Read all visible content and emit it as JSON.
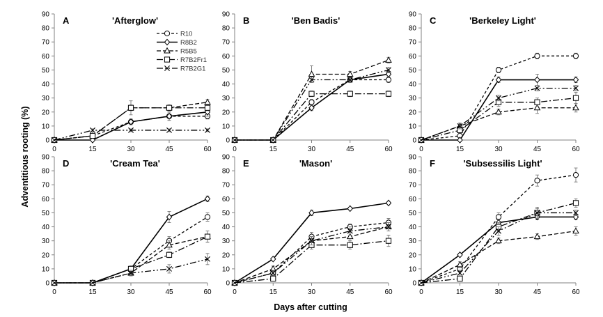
{
  "figure": {
    "xlabel": "Days after cutting",
    "ylabel": "Adventitious rooting (%)"
  },
  "chart_data": [
    {
      "type": "line",
      "letter": "A",
      "title": "'Afterglow'",
      "x": [
        0,
        15,
        30,
        45,
        60
      ],
      "xticks": [
        0,
        15,
        30,
        45,
        60
      ],
      "ylim": [
        0,
        90
      ],
      "yticks": [
        0,
        10,
        20,
        30,
        40,
        50,
        60,
        70,
        80,
        90
      ],
      "grid": false,
      "legend": "top-right",
      "series": [
        {
          "name": "R10",
          "values": [
            0,
            3,
            13,
            17,
            17
          ],
          "err": [
            0,
            1,
            2,
            3,
            2
          ]
        },
        {
          "name": "R8B2",
          "values": [
            0,
            0,
            13,
            17,
            20
          ],
          "err": [
            0,
            0,
            2,
            3,
            3
          ]
        },
        {
          "name": "R5B5",
          "values": [
            0,
            3,
            23,
            23,
            27
          ],
          "err": [
            0,
            1,
            2,
            2,
            2
          ]
        },
        {
          "name": "R7B2Fr1",
          "values": [
            0,
            3,
            23,
            23,
            23
          ],
          "err": [
            0,
            1,
            5,
            2,
            2
          ]
        },
        {
          "name": "R7B2G1",
          "values": [
            0,
            7,
            7,
            7,
            7
          ],
          "err": [
            0,
            1,
            1,
            1,
            1
          ]
        }
      ]
    },
    {
      "type": "line",
      "letter": "B",
      "title": "'Ben Badis'",
      "x": [
        0,
        15,
        30,
        45,
        60
      ],
      "xticks": [
        0,
        15,
        30,
        45,
        60
      ],
      "ylim": [
        0,
        90
      ],
      "yticks": [
        0,
        10,
        20,
        30,
        40,
        50,
        60,
        70,
        80,
        90
      ],
      "grid": false,
      "series": [
        {
          "name": "R10",
          "values": [
            0,
            0,
            27,
            43,
            43
          ],
          "err": [
            0,
            0,
            2,
            2,
            2
          ]
        },
        {
          "name": "R8B2",
          "values": [
            0,
            0,
            23,
            43,
            47
          ],
          "err": [
            0,
            0,
            2,
            2,
            2
          ]
        },
        {
          "name": "R5B5",
          "values": [
            0,
            0,
            47,
            47,
            57
          ],
          "err": [
            0,
            0,
            6,
            2,
            2
          ]
        },
        {
          "name": "R7B2Fr1",
          "values": [
            0,
            0,
            33,
            33,
            33
          ],
          "err": [
            0,
            0,
            2,
            2,
            2
          ]
        },
        {
          "name": "R7B2G1",
          "values": [
            0,
            0,
            43,
            43,
            50
          ],
          "err": [
            0,
            0,
            2,
            2,
            2
          ]
        }
      ]
    },
    {
      "type": "line",
      "letter": "C",
      "title": "'Berkeley Light'",
      "x": [
        0,
        15,
        30,
        45,
        60
      ],
      "xticks": [
        0,
        15,
        30,
        45,
        60
      ],
      "ylim": [
        0,
        90
      ],
      "yticks": [
        0,
        10,
        20,
        30,
        40,
        50,
        60,
        70,
        80,
        90
      ],
      "grid": false,
      "series": [
        {
          "name": "R10",
          "values": [
            0,
            3,
            50,
            60,
            60
          ],
          "err": [
            0,
            1,
            2,
            2,
            2
          ]
        },
        {
          "name": "R8B2",
          "values": [
            0,
            0,
            43,
            43,
            43
          ],
          "err": [
            0,
            0,
            2,
            4,
            2
          ]
        },
        {
          "name": "R5B5",
          "values": [
            0,
            10,
            20,
            23,
            23
          ],
          "err": [
            0,
            2,
            2,
            4,
            3
          ]
        },
        {
          "name": "R7B2Fr1",
          "values": [
            0,
            7,
            27,
            27,
            30
          ],
          "err": [
            0,
            2,
            3,
            3,
            4
          ]
        },
        {
          "name": "R7B2G1",
          "values": [
            0,
            10,
            30,
            37,
            37
          ],
          "err": [
            0,
            2,
            2,
            2,
            2
          ]
        }
      ]
    },
    {
      "type": "line",
      "letter": "D",
      "title": "'Cream Tea'",
      "x": [
        0,
        15,
        30,
        45,
        60
      ],
      "xticks": [
        0,
        15,
        30,
        45,
        60
      ],
      "ylim": [
        0,
        90
      ],
      "yticks": [
        0,
        10,
        20,
        30,
        40,
        50,
        60,
        70,
        80,
        90
      ],
      "grid": false,
      "series": [
        {
          "name": "R10",
          "values": [
            0,
            0,
            10,
            30,
            47
          ],
          "err": [
            0,
            0,
            2,
            3,
            3
          ]
        },
        {
          "name": "R8B2",
          "values": [
            0,
            0,
            10,
            47,
            60
          ],
          "err": [
            0,
            0,
            2,
            4,
            2
          ]
        },
        {
          "name": "R5B5",
          "values": [
            0,
            0,
            7,
            27,
            33
          ],
          "err": [
            0,
            0,
            2,
            3,
            4
          ]
        },
        {
          "name": "R7B2Fr1",
          "values": [
            0,
            0,
            10,
            20,
            33
          ],
          "err": [
            0,
            0,
            2,
            2,
            4
          ]
        },
        {
          "name": "R7B2G1",
          "values": [
            0,
            0,
            7,
            10,
            17
          ],
          "err": [
            0,
            0,
            2,
            3,
            4
          ]
        }
      ]
    },
    {
      "type": "line",
      "letter": "E",
      "title": "'Mason'",
      "x": [
        0,
        15,
        30,
        45,
        60
      ],
      "xticks": [
        0,
        15,
        30,
        45,
        60
      ],
      "ylim": [
        0,
        90
      ],
      "yticks": [
        0,
        10,
        20,
        30,
        40,
        50,
        60,
        70,
        80,
        90
      ],
      "grid": false,
      "series": [
        {
          "name": "R10",
          "values": [
            0,
            7,
            33,
            40,
            43
          ],
          "err": [
            0,
            2,
            3,
            2,
            3
          ]
        },
        {
          "name": "R8B2",
          "values": [
            0,
            17,
            50,
            53,
            57
          ],
          "err": [
            0,
            1,
            2,
            1,
            1
          ]
        },
        {
          "name": "R5B5",
          "values": [
            0,
            10,
            30,
            33,
            40
          ],
          "err": [
            0,
            2,
            3,
            3,
            3
          ]
        },
        {
          "name": "R7B2Fr1",
          "values": [
            0,
            3,
            27,
            27,
            30
          ],
          "err": [
            0,
            1,
            3,
            3,
            4
          ]
        },
        {
          "name": "R7B2G1",
          "values": [
            0,
            7,
            30,
            37,
            40
          ],
          "err": [
            0,
            2,
            3,
            3,
            3
          ]
        }
      ]
    },
    {
      "type": "line",
      "letter": "F",
      "title": "'Subsessilis Light'",
      "x": [
        0,
        15,
        30,
        45,
        60
      ],
      "xticks": [
        0,
        15,
        30,
        45,
        60
      ],
      "ylim": [
        0,
        90
      ],
      "yticks": [
        0,
        10,
        20,
        30,
        40,
        50,
        60,
        70,
        80,
        90
      ],
      "grid": false,
      "series": [
        {
          "name": "R10",
          "values": [
            0,
            10,
            47,
            73,
            77
          ],
          "err": [
            0,
            2,
            3,
            4,
            5
          ]
        },
        {
          "name": "R8B2",
          "values": [
            0,
            20,
            43,
            47,
            47
          ],
          "err": [
            0,
            1,
            2,
            2,
            2
          ]
        },
        {
          "name": "R5B5",
          "values": [
            0,
            13,
            30,
            33,
            37
          ],
          "err": [
            0,
            2,
            2,
            2,
            3
          ]
        },
        {
          "name": "R7B2Fr1",
          "values": [
            0,
            3,
            40,
            50,
            57
          ],
          "err": [
            0,
            1,
            3,
            4,
            3
          ]
        },
        {
          "name": "R7B2G1",
          "values": [
            0,
            7,
            37,
            50,
            50
          ],
          "err": [
            0,
            2,
            3,
            3,
            2
          ]
        }
      ]
    }
  ],
  "series_style": {
    "R10": {
      "marker": "circle",
      "dash": "4,3",
      "width": 1.3
    },
    "R8B2": {
      "marker": "diamond",
      "dash": "",
      "width": 1.6
    },
    "R5B5": {
      "marker": "triangle",
      "dash": "6,3",
      "width": 1.3
    },
    "R7B2Fr1": {
      "marker": "square",
      "dash": "9,3,2,3",
      "width": 1.3
    },
    "R7B2G1": {
      "marker": "cross",
      "dash": "9,3,2,3,2,3",
      "width": 1.3
    }
  }
}
